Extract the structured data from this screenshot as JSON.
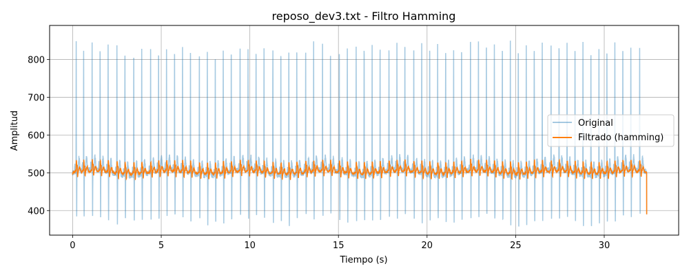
{
  "chart_data": {
    "type": "line",
    "title": "reposo_dev3.txt - Filtro Hamming",
    "xlabel": "Tiempo (s)",
    "ylabel": "Amplitud",
    "xlim": [
      -1.3,
      34.2
    ],
    "ylim": [
      335,
      890
    ],
    "xticks": [
      0,
      5,
      10,
      15,
      20,
      25,
      30
    ],
    "yticks": [
      400,
      500,
      600,
      700,
      800
    ],
    "grid": true,
    "legend_position": "center-right",
    "duration_s": 32.4,
    "beat_times_s": [
      0.2,
      0.62,
      1.1,
      1.55,
      2.0,
      2.5,
      2.95,
      3.45,
      3.9,
      4.4,
      4.85,
      5.3,
      5.75,
      6.2,
      6.65,
      7.15,
      7.6,
      8.05,
      8.5,
      8.95,
      9.45,
      9.9,
      10.35,
      10.8,
      11.3,
      11.75,
      12.2,
      12.65,
      13.15,
      13.6,
      14.1,
      14.55,
      15.05,
      15.5,
      16.0,
      16.45,
      16.9,
      17.35,
      17.85,
      18.3,
      18.75,
      19.25,
      19.7,
      20.15,
      20.6,
      21.05,
      21.5,
      21.95,
      22.45,
      22.9,
      23.35,
      23.8,
      24.25,
      24.7,
      25.15,
      25.6,
      26.05,
      26.5,
      27.0,
      27.45,
      27.9,
      28.35,
      28.8,
      29.25,
      29.7,
      30.15,
      30.6,
      31.05,
      31.5,
      32.0
    ],
    "beat_peaks": [
      848,
      818,
      830,
      835,
      840,
      845,
      832,
      838,
      828,
      822,
      820,
      818,
      828,
      835,
      832,
      830,
      822,
      820,
      826,
      828,
      835,
      825,
      826,
      828,
      832,
      830,
      826,
      838,
      830,
      840,
      838,
      818,
      828,
      835,
      838,
      848,
      842,
      840,
      838,
      840,
      845,
      840,
      850,
      846,
      845,
      838,
      830,
      832,
      866,
      842,
      845,
      840,
      845,
      852,
      838,
      838,
      842,
      835,
      835,
      838,
      835,
      840,
      845,
      838,
      835,
      835,
      838,
      830,
      826,
      830
    ],
    "beat_troughs": [
      385,
      375,
      380,
      376,
      378,
      374,
      380,
      372,
      378,
      375,
      372,
      380,
      374,
      376,
      372,
      378,
      374,
      376,
      372,
      374,
      380,
      372,
      376,
      374,
      378,
      376,
      372,
      378,
      380,
      374,
      380,
      382,
      372,
      378,
      374,
      380,
      374,
      368,
      374,
      372,
      378,
      374,
      372,
      378,
      382,
      374,
      376,
      372,
      370,
      374,
      376,
      372,
      374,
      368,
      362,
      362,
      370,
      374,
      376,
      372,
      374,
      370,
      372,
      366,
      374,
      372,
      376,
      378,
      380,
      386
    ],
    "baseline": 500,
    "end_value": 390,
    "series": [
      {
        "name": "Original",
        "color": "#1f77b4",
        "opacity": 0.4
      },
      {
        "name": "Filtrado (hamming)",
        "color": "#ff7f0e",
        "opacity": 1.0
      }
    ]
  }
}
